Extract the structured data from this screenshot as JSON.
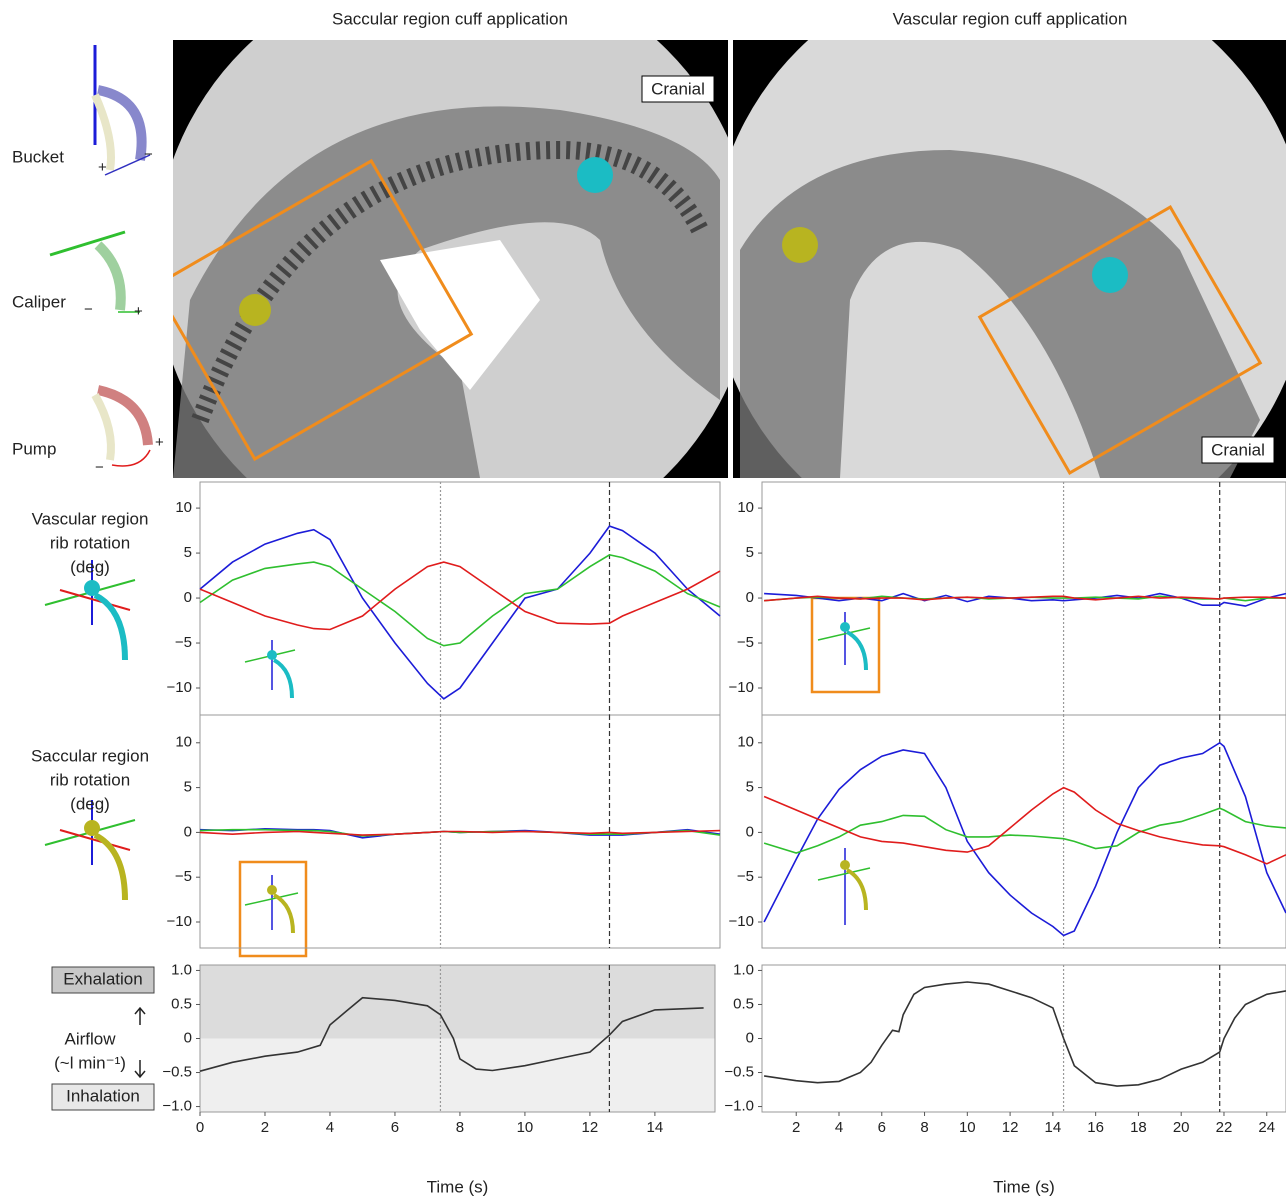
{
  "figure": {
    "column_titles": [
      "Saccular region cuff application",
      "Vascular region cuff application"
    ],
    "image_labels": [
      "Cranial",
      "Cranial"
    ],
    "motions": [
      {
        "label": "Bucket",
        "plus": "+",
        "minus": "−"
      },
      {
        "label": "Caliper",
        "plus": "+",
        "minus": "−"
      },
      {
        "label": "Pump",
        "plus": "+",
        "minus": "−"
      }
    ]
  },
  "chart_data": [
    {
      "type": "line",
      "ylabel": [
        "Vascular region",
        "rib rotation",
        "(deg)"
      ],
      "x": [
        0,
        1,
        2,
        3,
        3.5,
        4,
        5,
        6,
        7,
        7.5,
        8,
        9,
        10,
        11,
        12,
        12.6,
        13,
        14,
        15,
        16
      ],
      "series": [
        {
          "color": "#1c1cd8",
          "values": [
            1,
            4,
            6,
            7.2,
            7.6,
            6.5,
            0,
            -5,
            -9.5,
            -11.2,
            -10,
            -5,
            0,
            1,
            5,
            8,
            7.5,
            5,
            1,
            -2
          ]
        },
        {
          "color": "#2fbf2f",
          "values": [
            -0.5,
            2,
            3.3,
            3.8,
            4,
            3.5,
            1,
            -1.5,
            -4.5,
            -5.3,
            -5,
            -2,
            0.5,
            1,
            3.5,
            4.8,
            4.5,
            3,
            0.5,
            -1
          ]
        },
        {
          "color": "#e01c1c",
          "values": [
            1,
            -0.5,
            -2,
            -3,
            -3.4,
            -3.5,
            -2,
            1,
            3.5,
            4,
            3.5,
            1,
            -1.5,
            -2.8,
            -2.9,
            -2.8,
            -2,
            -0.5,
            1,
            3
          ]
        }
      ],
      "xlim": [
        0,
        16
      ],
      "ylim": [
        -13,
        12.9
      ],
      "yticks": [
        {
          "value": -10,
          "label": "−10"
        },
        {
          "value": -5,
          "label": "−5"
        },
        0,
        5,
        10
      ],
      "vlines": [
        7.4,
        12.6
      ]
    },
    {
      "type": "line",
      "x": [
        0.5,
        2,
        3,
        4,
        5,
        6,
        7,
        8,
        9,
        10,
        11,
        12,
        13,
        14,
        14.5,
        15,
        16,
        17,
        18,
        19,
        20,
        21,
        21.8,
        22,
        23,
        24,
        24.9
      ],
      "series": [
        {
          "color": "#1c1cd8",
          "values": [
            0.5,
            0.3,
            0,
            -0.3,
            0,
            -0.3,
            0.5,
            -0.3,
            0.3,
            -0.4,
            0.2,
            0,
            -0.3,
            -0.2,
            -0.3,
            -0.2,
            0,
            0.3,
            0,
            0.5,
            0,
            -0.8,
            -0.8,
            -0.5,
            -0.9,
            0,
            0.5
          ]
        },
        {
          "color": "#2fbf2f",
          "values": [
            -0.3,
            0,
            0.1,
            0,
            -0.1,
            0.2,
            0,
            -0.1,
            0,
            0.1,
            -0.1,
            0,
            0.1,
            0,
            0,
            0,
            0.1,
            0,
            -0.1,
            0.2,
            0,
            -0.1,
            -0.1,
            0,
            -0.3,
            0,
            0
          ]
        },
        {
          "color": "#e01c1c",
          "values": [
            -0.3,
            0,
            0.2,
            0,
            -0.1,
            0,
            0,
            -0.2,
            0,
            0.1,
            0,
            0,
            0.1,
            0.2,
            0.2,
            0,
            -0.2,
            0,
            0.2,
            0,
            0.1,
            0,
            -0.1,
            0,
            0.1,
            0.1,
            0
          ]
        }
      ],
      "xlim": [
        0.4,
        24.9
      ],
      "ylim": [
        -13,
        12.9
      ],
      "yticks": [
        {
          "value": -10,
          "label": "−10"
        },
        {
          "value": -5,
          "label": "−5"
        },
        0,
        5,
        10
      ],
      "vlines": [
        14.5,
        21.8
      ]
    },
    {
      "type": "line",
      "ylabel": [
        "Saccular region",
        "rib rotation",
        "(deg)"
      ],
      "x": [
        0,
        1,
        2,
        3,
        3.5,
        4,
        5,
        6,
        7,
        7.5,
        8,
        9,
        10,
        11,
        12,
        12.6,
        13,
        14,
        15,
        16
      ],
      "series": [
        {
          "color": "#1c1cd8",
          "values": [
            0.3,
            0.2,
            0.4,
            0.3,
            0.3,
            0.2,
            -0.6,
            -0.2,
            0,
            0.1,
            0,
            0.1,
            0.2,
            0,
            -0.3,
            -0.3,
            -0.3,
            0,
            0.3,
            -0.2
          ]
        },
        {
          "color": "#2fbf2f",
          "values": [
            0.2,
            0.3,
            0.3,
            0.2,
            0.2,
            0.1,
            -0.4,
            -0.2,
            0,
            0.1,
            0,
            0.1,
            0.1,
            0,
            -0.2,
            -0.2,
            -0.2,
            0,
            0.2,
            -0.3
          ]
        },
        {
          "color": "#e01c1c",
          "values": [
            0,
            -0.2,
            0,
            0.1,
            0,
            -0.1,
            -0.3,
            -0.2,
            0,
            0.1,
            0.1,
            0,
            0.1,
            0,
            -0.1,
            0,
            -0.1,
            0,
            0.1,
            0.2
          ]
        }
      ],
      "xlim": [
        0,
        16
      ],
      "ylim": [
        -12.9,
        13.1
      ],
      "yticks": [
        {
          "value": -10,
          "label": "−10"
        },
        {
          "value": -5,
          "label": "−5"
        },
        0,
        5,
        10
      ],
      "vlines": [
        7.4,
        12.6
      ]
    },
    {
      "type": "line",
      "x": [
        0.5,
        2,
        3,
        4,
        5,
        6,
        7,
        8,
        9,
        10,
        11,
        12,
        13,
        14,
        14.5,
        15,
        16,
        17,
        18,
        19,
        20,
        21,
        21.8,
        22,
        23,
        24,
        24.9
      ],
      "series": [
        {
          "color": "#1c1cd8",
          "values": [
            -10,
            -3,
            1.5,
            4.8,
            7,
            8.5,
            9.2,
            8.8,
            5,
            -1,
            -4.5,
            -7,
            -9,
            -10.5,
            -11.5,
            -11,
            -6,
            0,
            5,
            7.5,
            8.3,
            8.8,
            10,
            9.6,
            4,
            -4.5,
            -9
          ]
        },
        {
          "color": "#2fbf2f",
          "values": [
            -1.2,
            -2.3,
            -1.5,
            -0.5,
            0.8,
            1.2,
            1.9,
            1.8,
            0.3,
            -0.5,
            -0.5,
            -0.3,
            -0.4,
            -0.6,
            -0.7,
            -1,
            -1.8,
            -1.5,
            0,
            0.8,
            1.2,
            2,
            2.7,
            2.5,
            1.2,
            0.7,
            0.5
          ]
        },
        {
          "color": "#e01c1c",
          "values": [
            4,
            2.5,
            1.5,
            0.5,
            -0.5,
            -1,
            -1.2,
            -1.6,
            -2,
            -2.2,
            -1.5,
            0.5,
            2.5,
            4.3,
            5,
            4.5,
            2.5,
            1,
            0.2,
            -0.5,
            -1,
            -1.4,
            -1.5,
            -1.6,
            -2.5,
            -3.5,
            -2.5
          ]
        }
      ],
      "xlim": [
        0.4,
        24.9
      ],
      "ylim": [
        -12.9,
        13.1
      ],
      "yticks": [
        {
          "value": -10,
          "label": "−10"
        },
        {
          "value": -5,
          "label": "−5"
        },
        0,
        5,
        10
      ],
      "vlines": [
        14.5,
        21.8
      ]
    },
    {
      "type": "line",
      "ylabel": [
        "Airflow",
        "(~l min⁻¹)"
      ],
      "upper_label": "Exhalation",
      "lower_label": "Inhalation",
      "xlabel": "Time (s)",
      "x": [
        0,
        1,
        2,
        3,
        3.7,
        4,
        4.5,
        5,
        6,
        7,
        7.4,
        7.8,
        8,
        8.5,
        9,
        10,
        11,
        12,
        12.6,
        13,
        14,
        15.5
      ],
      "series": [
        {
          "color": "#333333",
          "values": [
            -0.48,
            -0.35,
            -0.26,
            -0.2,
            -0.1,
            0.2,
            0.4,
            0.6,
            0.56,
            0.48,
            0.35,
            0,
            -0.3,
            -0.45,
            -0.47,
            -0.4,
            -0.3,
            -0.2,
            0.05,
            0.25,
            0.42,
            0.45
          ]
        }
      ],
      "xlim": [
        0,
        15.85
      ],
      "ylim": [
        -1.08,
        1.08
      ],
      "yticks": [
        {
          "value": -1,
          "label": "−1.0"
        },
        {
          "value": -0.5,
          "label": "−0.5"
        },
        0,
        0.5,
        {
          "value": 1,
          "label": "1.0"
        }
      ],
      "xticks": [
        0,
        2,
        4,
        6,
        8,
        10,
        12,
        14
      ],
      "vlines": [
        7.4,
        12.6
      ]
    },
    {
      "type": "line",
      "xlabel": "Time (s)",
      "x": [
        0.5,
        2,
        3,
        4,
        5,
        5.5,
        6,
        6.5,
        6.8,
        7,
        7.5,
        8,
        9,
        10,
        11,
        12,
        13,
        14,
        14.5,
        15,
        16,
        17,
        18,
        19,
        20,
        21,
        21.8,
        22,
        22.5,
        23,
        24,
        24.9
      ],
      "series": [
        {
          "color": "#333333",
          "values": [
            -0.55,
            -0.62,
            -0.65,
            -0.63,
            -0.5,
            -0.35,
            -0.1,
            0.12,
            0.1,
            0.35,
            0.65,
            0.75,
            0.8,
            0.83,
            0.8,
            0.7,
            0.6,
            0.45,
            0,
            -0.4,
            -0.65,
            -0.7,
            -0.68,
            -0.6,
            -0.45,
            -0.35,
            -0.2,
            0,
            0.3,
            0.5,
            0.65,
            0.7
          ]
        }
      ],
      "xlim": [
        0.4,
        24.9
      ],
      "ylim": [
        -1.08,
        1.08
      ],
      "yticks": [
        {
          "value": -1,
          "label": "−1.0"
        },
        {
          "value": -0.5,
          "label": "−0.5"
        },
        0,
        0.5,
        {
          "value": 1,
          "label": "1.0"
        }
      ],
      "xticks": [
        2,
        4,
        6,
        8,
        10,
        12,
        14,
        16,
        18,
        20,
        22,
        24
      ],
      "vlines": [
        14.5,
        21.8
      ]
    }
  ]
}
